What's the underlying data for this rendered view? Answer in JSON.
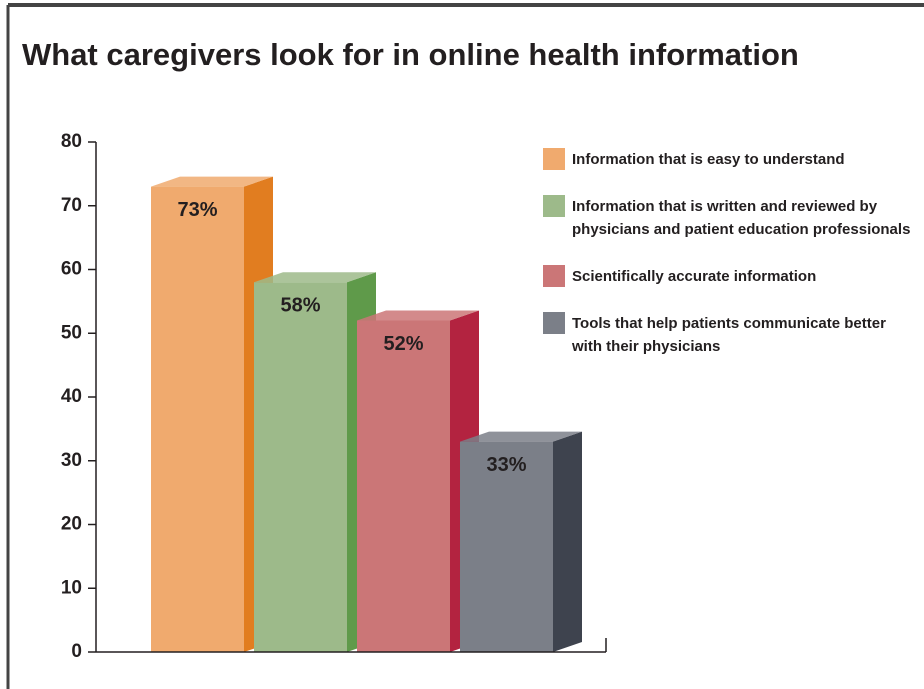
{
  "chart_data": {
    "type": "bar3d",
    "title": "What caregivers look for in online health information",
    "categories": [
      "Information that is easy to understand",
      "Information that is written and reviewed by physicians and patient education professionals",
      "Scientifically accurate information",
      "Tools that help patients communicate better with their physicians"
    ],
    "values": [
      73,
      58,
      52,
      33
    ],
    "value_labels": [
      "73%",
      "58%",
      "52%",
      "33%"
    ],
    "colors": [
      "#f0aa6e",
      "#9dba8a",
      "#cb7677",
      "#7b7f88"
    ],
    "side_colors": [
      "#e17d20",
      "#5f9a4a",
      "#b32340",
      "#3e434e"
    ],
    "ylim": [
      0,
      80
    ],
    "yticks": [
      0,
      10,
      20,
      30,
      40,
      50,
      60,
      70,
      80
    ],
    "legend": "right"
  }
}
